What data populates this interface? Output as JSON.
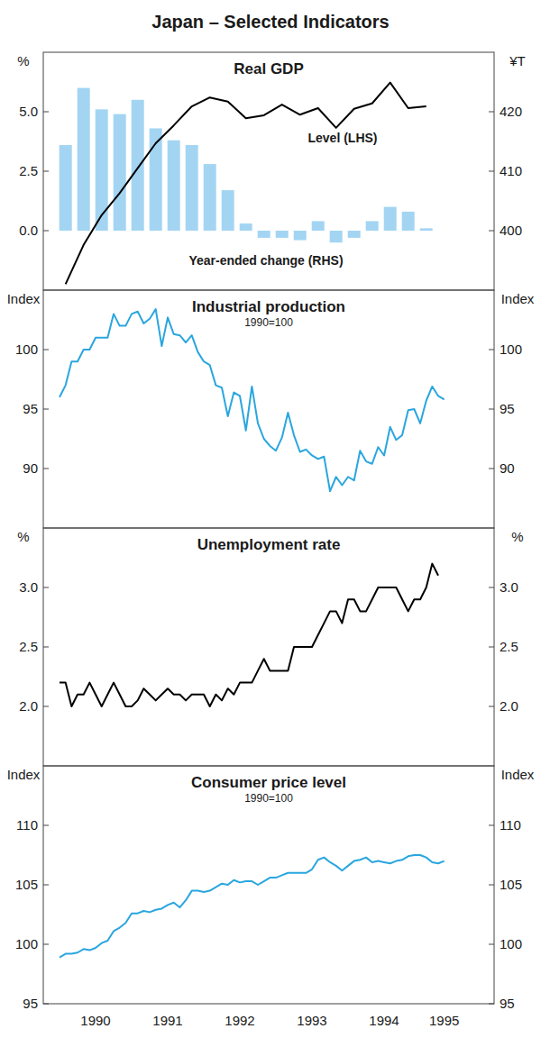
{
  "title": "Japan – Selected Indicators",
  "chart_data": [
    {
      "type": "bar",
      "title": "Real GDP",
      "ylabel": "%",
      "y2label": "¥T",
      "categories": [
        null,
        null,
        null,
        null,
        null,
        null,
        null,
        null,
        null,
        null,
        null,
        null,
        null,
        null,
        null,
        null,
        null,
        null,
        null,
        null,
        null,
        null,
        null,
        null
      ],
      "ylim": [
        -2.5,
        7.5
      ],
      "yticks": [
        {
          "value": 0,
          "label": "0.0"
        },
        2.5,
        {
          "value": 5,
          "label": "5.0"
        }
      ],
      "y2lim": [
        390,
        430
      ],
      "y2ticks": [
        400,
        410,
        420
      ],
      "tick_labels": "y",
      "series": [
        {
          "name": "Year-ended change (RHS)",
          "type": "bar",
          "color": "#a3d5f3",
          "values": [
            3.6,
            6.0,
            5.1,
            4.9,
            5.5,
            4.3,
            3.8,
            3.6,
            2.8,
            1.7,
            0.3,
            -0.3,
            -0.3,
            -0.4,
            0.4,
            -0.5,
            -0.3,
            0.4,
            1.0,
            0.8,
            0.1,
            null,
            null,
            null
          ]
        },
        {
          "name": "Level (LHS)",
          "type": "line",
          "color": "#000000",
          "axis": "y2",
          "values": [
            391.0,
            397.6,
            402.6,
            406.3,
            410.5,
            414.7,
            417.7,
            420.9,
            422.4,
            421.7,
            418.9,
            419.4,
            421.2,
            419.5,
            420.6,
            417.3,
            420.5,
            421.4,
            424.9,
            420.6,
            420.9,
            null,
            null,
            null
          ]
        }
      ]
    },
    {
      "type": "line",
      "title": "Industrial production",
      "subtitle": "1990=100",
      "ylabel": "Index",
      "y2label": "Index",
      "categories": [
        null,
        null,
        null,
        null,
        null,
        null,
        null,
        null,
        null,
        null,
        null,
        null,
        null,
        null,
        null,
        null,
        null,
        null,
        null,
        null,
        null,
        null,
        null,
        null,
        null,
        null,
        null,
        null,
        null,
        null,
        null,
        null,
        null,
        null,
        null,
        null,
        null,
        null,
        null,
        null,
        null,
        null,
        null,
        null,
        null,
        null,
        null,
        null,
        null,
        null,
        null,
        null,
        null,
        null,
        null,
        null,
        null,
        null,
        null,
        null,
        null,
        null,
        null,
        null,
        null,
        null,
        null,
        null,
        null,
        null,
        null,
        null
      ],
      "ylim": [
        85,
        105
      ],
      "yticks": [
        90,
        95,
        100
      ],
      "y2lim": [
        85,
        105
      ],
      "y2ticks": [
        90,
        95,
        100
      ],
      "tick_labels": "y",
      "series": [
        {
          "color": "#2aa6df",
          "values": [
            96.0,
            97.0,
            99.0,
            99.0,
            100.0,
            100.0,
            101.0,
            101.0,
            101.0,
            103.0,
            102.0,
            102.0,
            103.0,
            103.2,
            102.2,
            102.6,
            103.4,
            100.3,
            102.7,
            101.3,
            101.2,
            100.6,
            101.2,
            99.8,
            99.0,
            98.7,
            97.0,
            96.8,
            94.4,
            96.4,
            96.1,
            93.2,
            96.9,
            93.8,
            92.5,
            91.9,
            91.5,
            92.6,
            94.7,
            92.8,
            91.4,
            91.6,
            91.1,
            90.8,
            91.0,
            88.1,
            89.3,
            88.6,
            89.3,
            89.0,
            91.5,
            90.6,
            90.4,
            91.8,
            91.1,
            93.5,
            92.4,
            92.8,
            94.9,
            95.0,
            93.8,
            95.7,
            96.9,
            96.1,
            95.8,
            null,
            null,
            null,
            null,
            null,
            null,
            null
          ]
        }
      ]
    },
    {
      "type": "line",
      "title": "Unemployment rate",
      "ylabel": "%",
      "y2label": "%",
      "categories": [
        null,
        null,
        null,
        null,
        null,
        null,
        null,
        null,
        null,
        null,
        null,
        null,
        null,
        null,
        null,
        null,
        null,
        null,
        null,
        null,
        null,
        null,
        null,
        null,
        null,
        null,
        null,
        null,
        null,
        null,
        null,
        null,
        null,
        null,
        null,
        null,
        null,
        null,
        null,
        null,
        null,
        null,
        null,
        null,
        null,
        null,
        null,
        null,
        null,
        null,
        null,
        null,
        null,
        null,
        null,
        null,
        null,
        null,
        null,
        null,
        null,
        null,
        null,
        null,
        null,
        null,
        null,
        null,
        null,
        null,
        null,
        null
      ],
      "ylim": [
        1.5,
        3.5
      ],
      "yticks": [
        {
          "value": 2,
          "label": "2.0"
        },
        2.5,
        {
          "value": 3,
          "label": "3.0"
        }
      ],
      "y2lim": [
        1.5,
        3.5
      ],
      "y2ticks": [
        {
          "value": 2,
          "label": "2.0"
        },
        2.5,
        {
          "value": 3,
          "label": "3.0"
        }
      ],
      "tick_labels": "y",
      "series": [
        {
          "color": "#000000",
          "values": [
            2.2,
            2.2,
            2.0,
            2.1,
            2.1,
            2.2,
            2.1,
            2.0,
            2.1,
            2.2,
            2.1,
            2.0,
            2.0,
            2.05,
            2.15,
            2.1,
            2.05,
            2.1,
            2.15,
            2.1,
            2.1,
            2.05,
            2.1,
            2.1,
            2.1,
            2.0,
            2.1,
            2.05,
            2.15,
            2.1,
            2.2,
            2.2,
            2.2,
            2.3,
            2.4,
            2.3,
            2.3,
            2.3,
            2.3,
            2.5,
            2.5,
            2.5,
            2.5,
            2.6,
            2.7,
            2.8,
            2.8,
            2.7,
            2.9,
            2.9,
            2.8,
            2.8,
            2.9,
            3.0,
            3.0,
            3.0,
            3.0,
            2.9,
            2.8,
            2.9,
            2.9,
            3.0,
            3.2,
            3.1,
            null,
            null,
            null,
            null,
            null,
            null,
            null,
            null
          ]
        }
      ]
    },
    {
      "type": "line",
      "title": "Consumer price level",
      "subtitle": "1990=100",
      "ylabel": "Index",
      "y2label": "Index",
      "categories": [
        null,
        null,
        null,
        null,
        null,
        null,
        "1990",
        null,
        null,
        null,
        null,
        null,
        null,
        null,
        null,
        null,
        null,
        null,
        "1991",
        null,
        null,
        null,
        null,
        null,
        null,
        null,
        null,
        null,
        null,
        null,
        "1992",
        null,
        null,
        null,
        null,
        null,
        null,
        null,
        null,
        null,
        null,
        null,
        "1993",
        null,
        null,
        null,
        null,
        null,
        null,
        null,
        null,
        null,
        null,
        null,
        "1994",
        null,
        null,
        null,
        null,
        null,
        null,
        null,
        null,
        null,
        "1995",
        null,
        null,
        null,
        null,
        null,
        null,
        null
      ],
      "ylim": [
        95,
        115
      ],
      "yticks": [
        95,
        100,
        105,
        110
      ],
      "y2lim": [
        95,
        115
      ],
      "y2ticks": [
        95,
        100,
        105,
        110
      ],
      "series": [
        {
          "color": "#2aa6df",
          "values": [
            98.9,
            99.2,
            99.2,
            99.3,
            99.6,
            99.5,
            99.7,
            100.1,
            100.3,
            101.1,
            101.4,
            101.8,
            102.6,
            102.6,
            102.8,
            102.7,
            102.9,
            103.0,
            103.3,
            103.5,
            103.1,
            103.7,
            104.5,
            104.5,
            104.4,
            104.5,
            104.8,
            105.1,
            105.0,
            105.4,
            105.2,
            105.3,
            105.3,
            105.0,
            105.3,
            105.6,
            105.6,
            105.8,
            106.0,
            106.0,
            106.0,
            106.0,
            106.3,
            107.1,
            107.3,
            106.9,
            106.6,
            106.2,
            106.6,
            107.0,
            107.1,
            107.3,
            106.9,
            107.0,
            106.9,
            106.8,
            107.0,
            107.1,
            107.4,
            107.5,
            107.5,
            107.3,
            106.9,
            106.8,
            107.0,
            null,
            null,
            null,
            null,
            null,
            null,
            null
          ]
        }
      ]
    }
  ]
}
